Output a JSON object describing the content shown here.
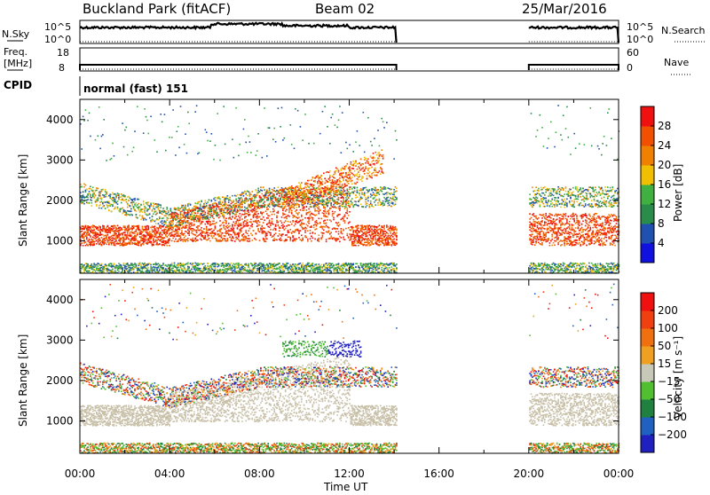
{
  "header": {
    "title": "Buckland Park (fitACF)",
    "beam": "Beam 02",
    "date": "25/Mar/2016"
  },
  "nsky_panel": {
    "left_label": "N.Sky",
    "right_label": "N.Search",
    "left_ticks": [
      "10^5",
      "10^0"
    ],
    "right_ticks": [
      "10^5",
      "10^0"
    ]
  },
  "freq_panel": {
    "left_label_1": "Freq.",
    "left_label_2": "[MHz]",
    "right_label": "Nave",
    "left_ticks": [
      "18",
      "8"
    ],
    "right_ticks": [
      "60",
      "0"
    ]
  },
  "cpid": {
    "label": "CPID",
    "value": "normal (fast) 151"
  },
  "colors": {
    "power_scale": [
      "#1010e0",
      "#2050b0",
      "#2a8c4a",
      "#40b040",
      "#f0c000",
      "#f08000",
      "#f05000",
      "#f01010"
    ],
    "velocity_scale": [
      "#2020c0",
      "#2060c0",
      "#208040",
      "#50c030",
      "#c8c8b8",
      "#f0a020",
      "#f07010",
      "#f04010",
      "#f01010"
    ],
    "ground_scatter": "#c8c0a8"
  },
  "chart_data": [
    {
      "type": "heatmap",
      "title": "Power",
      "ylabel": "Slant Range [km]",
      "ylim": [
        200,
        4500
      ],
      "xlim": [
        0,
        24
      ],
      "y_ticks": [
        "1000",
        "2000",
        "3000",
        "4000"
      ],
      "x_ticks": [
        "00:00",
        "04:00",
        "08:00",
        "12:00",
        "16:00",
        "20:00",
        "00:00"
      ],
      "colorbar_label": "Power [dB]",
      "colorbar_ticks": [
        "4",
        "8",
        "12",
        "16",
        "20",
        "24",
        "28"
      ],
      "data_gaps": [
        [
          14.1,
          20.0
        ]
      ]
    },
    {
      "type": "heatmap",
      "title": "Velocity",
      "ylabel": "Slant Range [km]",
      "xlabel": "Time UT",
      "ylim": [
        200,
        4500
      ],
      "xlim": [
        0,
        24
      ],
      "y_ticks": [
        "1000",
        "2000",
        "3000",
        "4000"
      ],
      "x_ticks": [
        "00:00",
        "04:00",
        "08:00",
        "12:00",
        "16:00",
        "20:00",
        "00:00"
      ],
      "colorbar_label": "Velocity [m s⁻¹]",
      "colorbar_ticks": [
        "200",
        "100",
        "50",
        "15",
        "−15",
        "−50",
        "−100",
        "−200"
      ],
      "data_gaps": [
        [
          14.1,
          20.0
        ]
      ]
    }
  ]
}
